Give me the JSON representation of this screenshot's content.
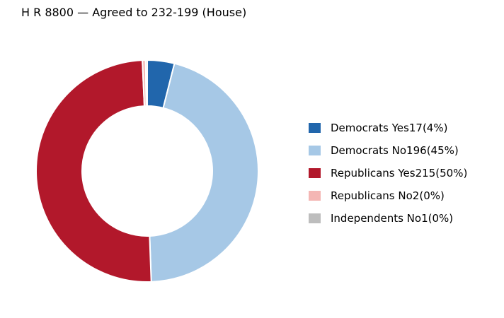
{
  "chart_data": {
    "type": "pie",
    "title": "H R 8800 — Agreed to 232-199 (House)",
    "donut": true,
    "legend_position": "right",
    "slices": [
      {
        "label": "Democrats Yes",
        "value": 17,
        "percent_label": "(4%)",
        "color": "#2166ac"
      },
      {
        "label": "Democrats No",
        "value": 196,
        "percent_label": "(45%)",
        "color": "#a6c8e6"
      },
      {
        "label": "Republicans Yes",
        "value": 215,
        "percent_label": "(50%)",
        "color": "#b2182b"
      },
      {
        "label": "Republicans No",
        "value": 2,
        "percent_label": "(0%)",
        "color": "#f4b6b4"
      },
      {
        "label": "Independents No",
        "value": 1,
        "percent_label": "(0%)",
        "color": "#bdbdbd"
      }
    ]
  }
}
